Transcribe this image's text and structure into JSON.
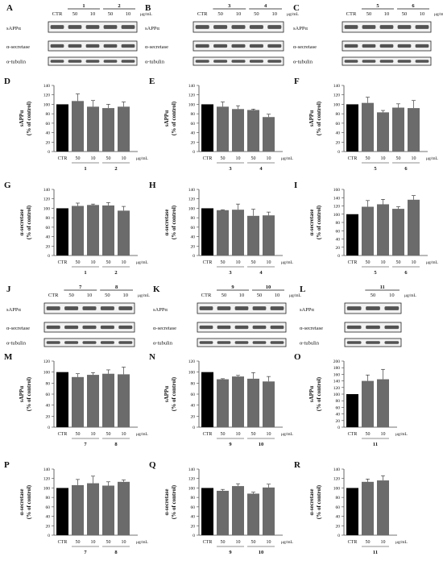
{
  "figure": {
    "unit_label": "μg/mL",
    "ctr_label": "CTR",
    "blot_labels": {
      "sapp": "sAPPα",
      "secretase": "α-secretase",
      "tubulin": "α-tubulin"
    }
  },
  "colors": {
    "control_bar": "#000000",
    "treatment_bar": "#6b6b6b",
    "band": "#2a2a2a"
  },
  "blot_panels": [
    {
      "letter": "A",
      "groups": [
        {
          "label": "1",
          "doses": [
            "50",
            "10"
          ]
        },
        {
          "label": "2",
          "doses": [
            "50",
            "10"
          ]
        }
      ]
    },
    {
      "letter": "B",
      "groups": [
        {
          "label": "3",
          "doses": [
            "50",
            "10"
          ]
        },
        {
          "label": "4",
          "doses": [
            "50",
            "10"
          ]
        }
      ]
    },
    {
      "letter": "C",
      "groups": [
        {
          "label": "5",
          "doses": [
            "50",
            "10"
          ]
        },
        {
          "label": "6",
          "doses": [
            "50",
            "10"
          ]
        }
      ]
    },
    {
      "letter": "J",
      "groups": [
        {
          "label": "7",
          "doses": [
            "50",
            "10"
          ]
        },
        {
          "label": "8",
          "doses": [
            "50",
            "10"
          ]
        }
      ]
    },
    {
      "letter": "K",
      "groups": [
        {
          "label": "9",
          "doses": [
            "50",
            "10"
          ]
        },
        {
          "label": "10",
          "doses": [
            "50",
            "10"
          ]
        }
      ]
    },
    {
      "letter": "L",
      "groups": [
        {
          "label": "11",
          "doses": [
            "50",
            "10"
          ]
        }
      ]
    }
  ],
  "chart_data": [
    {
      "panel": "D",
      "type": "bar",
      "ylabel": [
        "sAPPα",
        "(% of control)"
      ],
      "ylim": [
        0,
        140
      ],
      "yticks": [
        0,
        20,
        40,
        60,
        80,
        100,
        120,
        140
      ],
      "categories": [
        "CTR",
        "50",
        "10",
        "50",
        "10"
      ],
      "groups": [
        "1",
        "2"
      ],
      "values": [
        100,
        107,
        95,
        92,
        95
      ],
      "errors": [
        0,
        15,
        13,
        8,
        10
      ]
    },
    {
      "panel": "E",
      "type": "bar",
      "ylabel": [
        "sAPPα",
        "(% of control)"
      ],
      "ylim": [
        0,
        140
      ],
      "yticks": [
        0,
        20,
        40,
        60,
        80,
        100,
        120,
        140
      ],
      "categories": [
        "CTR",
        "50",
        "10",
        "50",
        "10"
      ],
      "groups": [
        "3",
        "4"
      ],
      "values": [
        100,
        95,
        90,
        88,
        73
      ],
      "errors": [
        0,
        10,
        7,
        2,
        6
      ]
    },
    {
      "panel": "F",
      "type": "bar",
      "ylabel": [
        "sAPPα",
        "(% of control)"
      ],
      "ylim": [
        0,
        140
      ],
      "yticks": [
        0,
        20,
        40,
        60,
        80,
        100,
        120,
        140
      ],
      "categories": [
        "CTR",
        "50",
        "10",
        "50",
        "10"
      ],
      "groups": [
        "5",
        "6"
      ],
      "values": [
        100,
        103,
        83,
        93,
        92
      ],
      "errors": [
        0,
        12,
        4,
        8,
        16
      ]
    },
    {
      "panel": "G",
      "type": "bar",
      "ylabel": [
        "α-secretase",
        "(% of control)"
      ],
      "ylim": [
        0,
        140
      ],
      "yticks": [
        0,
        20,
        40,
        60,
        80,
        100,
        120,
        140
      ],
      "categories": [
        "CTR",
        "50",
        "10",
        "50",
        "10"
      ],
      "groups": [
        "1",
        "2"
      ],
      "values": [
        100,
        105,
        107,
        106,
        95
      ],
      "errors": [
        0,
        6,
        2,
        6,
        9
      ]
    },
    {
      "panel": "H",
      "type": "bar",
      "ylabel": [
        "α-secretase",
        "(% of control)"
      ],
      "ylim": [
        0,
        140
      ],
      "yticks": [
        0,
        20,
        40,
        60,
        80,
        100,
        120,
        140
      ],
      "categories": [
        "CTR",
        "50",
        "10",
        "50",
        "10"
      ],
      "groups": [
        "3",
        "4"
      ],
      "values": [
        100,
        96,
        97,
        84,
        85
      ],
      "errors": [
        0,
        1,
        12,
        14,
        7
      ]
    },
    {
      "panel": "I",
      "type": "bar",
      "ylabel": [
        "α-secretase",
        "(% of control)"
      ],
      "ylim": [
        0,
        160
      ],
      "yticks": [
        0,
        20,
        40,
        60,
        80,
        100,
        120,
        140,
        160
      ],
      "categories": [
        "CTR",
        "50",
        "10",
        "50",
        "10"
      ],
      "groups": [
        "5",
        "6"
      ],
      "values": [
        100,
        118,
        124,
        113,
        135
      ],
      "errors": [
        0,
        15,
        12,
        5,
        10
      ]
    },
    {
      "panel": "M",
      "type": "bar",
      "ylabel": [
        "sAPPα",
        "(% of control)"
      ],
      "ylim": [
        0,
        120
      ],
      "yticks": [
        0,
        20,
        40,
        60,
        80,
        100,
        120
      ],
      "categories": [
        "CTR",
        "50",
        "10",
        "50",
        "10"
      ],
      "groups": [
        "7",
        "8"
      ],
      "values": [
        100,
        91,
        95,
        97,
        96
      ],
      "errors": [
        0,
        6,
        4,
        7,
        13
      ]
    },
    {
      "panel": "N",
      "type": "bar",
      "ylabel": [
        "sAPPα",
        "(% of control)"
      ],
      "ylim": [
        0,
        120
      ],
      "yticks": [
        0,
        20,
        40,
        60,
        80,
        100,
        120
      ],
      "categories": [
        "CTR",
        "50",
        "10",
        "50",
        "10"
      ],
      "groups": [
        "9",
        "10"
      ],
      "values": [
        100,
        87,
        92,
        88,
        83
      ],
      "errors": [
        0,
        1,
        2,
        11,
        9
      ]
    },
    {
      "panel": "O",
      "type": "bar",
      "ylabel": [
        "sAPPα",
        "(% of control)"
      ],
      "ylim": [
        0,
        200
      ],
      "yticks": [
        0,
        20,
        40,
        60,
        80,
        100,
        120,
        140,
        160,
        180,
        200
      ],
      "categories": [
        "CTR",
        "50",
        "10"
      ],
      "groups": [
        "11"
      ],
      "values": [
        100,
        140,
        145
      ],
      "errors": [
        0,
        18,
        30
      ]
    },
    {
      "panel": "P",
      "type": "bar",
      "ylabel": [
        "α-secretase",
        "(% of control)"
      ],
      "ylim": [
        0,
        140
      ],
      "yticks": [
        0,
        20,
        40,
        60,
        80,
        100,
        120,
        140
      ],
      "categories": [
        "CTR",
        "50",
        "10",
        "50",
        "10"
      ],
      "groups": [
        "7",
        "8"
      ],
      "values": [
        100,
        106,
        110,
        105,
        113
      ],
      "errors": [
        0,
        12,
        15,
        8,
        4
      ]
    },
    {
      "panel": "Q",
      "type": "bar",
      "ylabel": [
        "α-secretase",
        "(% of control)"
      ],
      "ylim": [
        0,
        140
      ],
      "yticks": [
        0,
        20,
        40,
        60,
        80,
        100,
        120,
        140
      ],
      "categories": [
        "CTR",
        "50",
        "10",
        "50",
        "10"
      ],
      "groups": [
        "9",
        "10"
      ],
      "values": [
        100,
        94,
        104,
        88,
        101
      ],
      "errors": [
        0,
        3,
        5,
        3,
        7
      ]
    },
    {
      "panel": "R",
      "type": "bar",
      "ylabel": [
        "α-secretase",
        "(% of control)"
      ],
      "ylim": [
        0,
        140
      ],
      "yticks": [
        0,
        20,
        40,
        60,
        80,
        100,
        120,
        140
      ],
      "categories": [
        "CTR",
        "50",
        "10"
      ],
      "groups": [
        "11"
      ],
      "values": [
        100,
        113,
        116
      ],
      "errors": [
        0,
        6,
        10
      ]
    }
  ]
}
